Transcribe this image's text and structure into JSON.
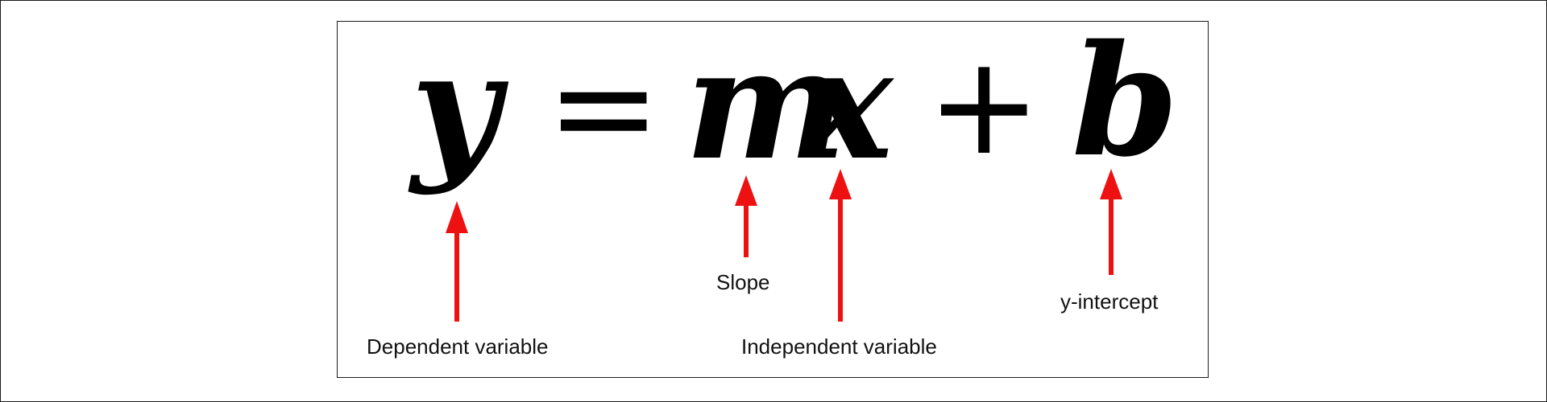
{
  "equation": {
    "y": "y",
    "equals": "=",
    "m": "m",
    "x": "x",
    "plus": "+",
    "b": "b"
  },
  "labels": {
    "dependent": "Dependent variable",
    "slope": "Slope",
    "independent": "Independent variable",
    "intercept": "y-intercept"
  },
  "colors": {
    "arrow": "#ee1111",
    "text": "#111111",
    "border": "#1a1a1a"
  }
}
